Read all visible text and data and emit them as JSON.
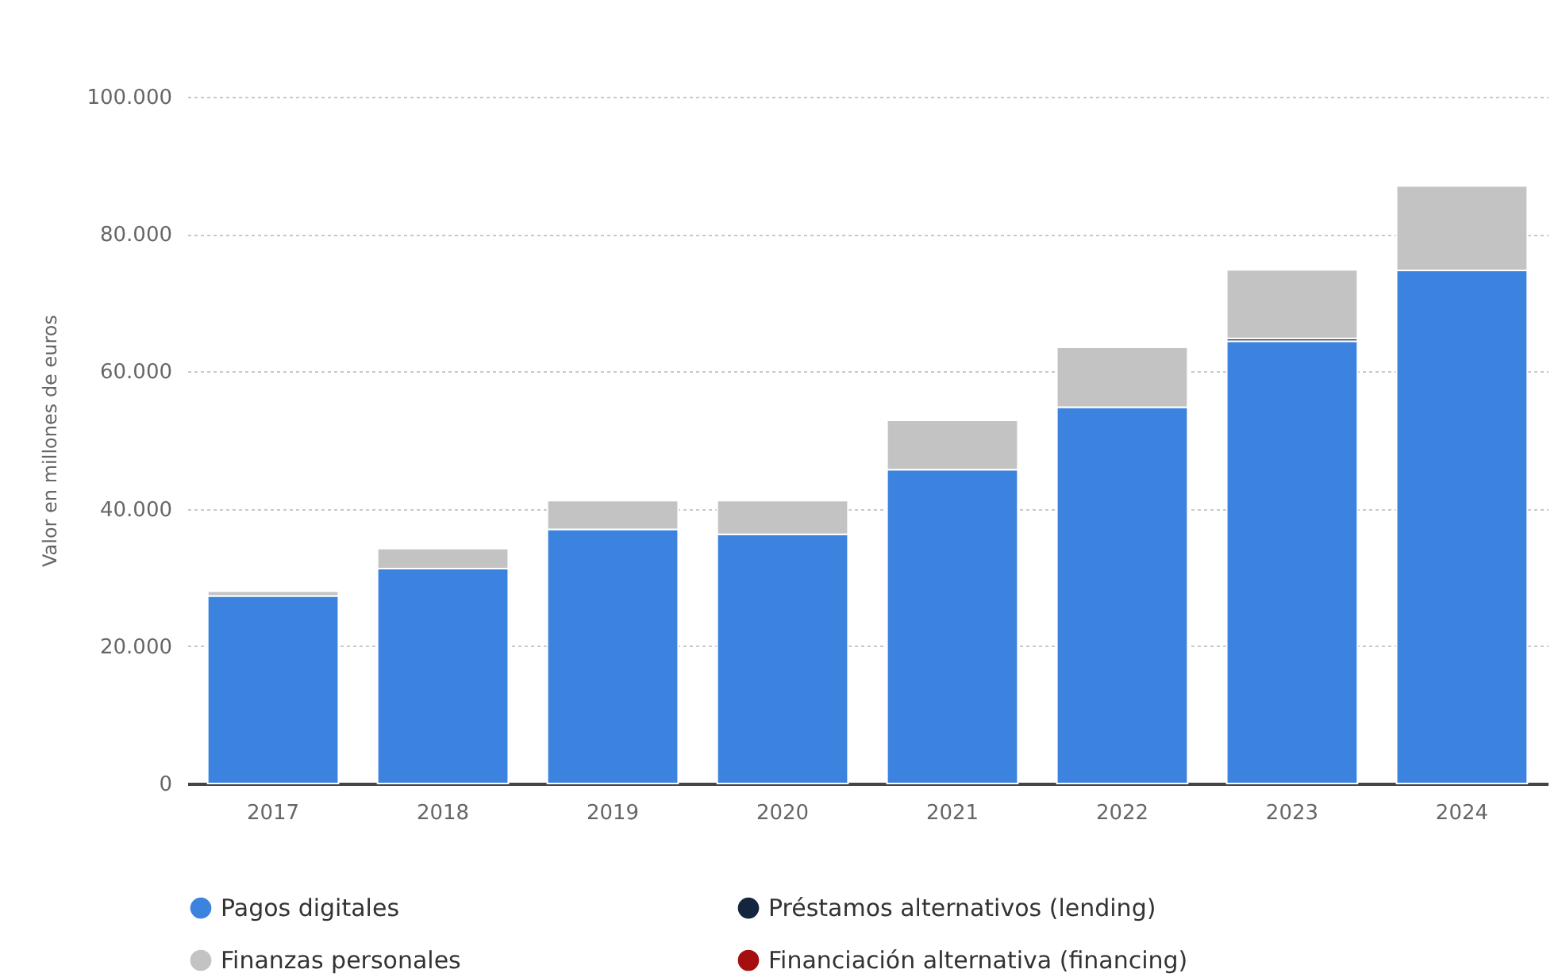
{
  "chart_data": {
    "type": "bar",
    "stacked": true,
    "ylabel": "Valor en millones de euros",
    "categories": [
      "2017",
      "2018",
      "2019",
      "2020",
      "2021",
      "2022",
      "2023",
      "2024"
    ],
    "series": [
      {
        "name": "Pagos digitales",
        "color": "#3c83e0",
        "values": [
          27300,
          31300,
          37000,
          36300,
          45700,
          54800,
          64400,
          74700
        ]
      },
      {
        "name": "Préstamos alternativos (lending)",
        "color": "#14253f",
        "values": [
          null,
          null,
          null,
          null,
          null,
          null,
          400,
          null
        ]
      },
      {
        "name": "Finanzas personales",
        "color": "#c3c3c3",
        "values": [
          700,
          2900,
          4200,
          4900,
          7200,
          8700,
          10000,
          12300
        ]
      },
      {
        "name": "Financiación alternativa (financing)",
        "color": "#a50f0f",
        "values": [
          null,
          null,
          null,
          null,
          null,
          null,
          null,
          null
        ]
      }
    ],
    "ylim": [
      0,
      100000
    ],
    "yticks": [
      0,
      {
        "value": 20000,
        "label": "20.000"
      },
      {
        "value": 40000,
        "label": "40.000"
      },
      {
        "value": 60000,
        "label": "60.000"
      },
      {
        "value": 80000,
        "label": "80.000"
      },
      {
        "value": 100000,
        "label": "100.000"
      }
    ],
    "grid": "y",
    "legend": "bottom"
  }
}
